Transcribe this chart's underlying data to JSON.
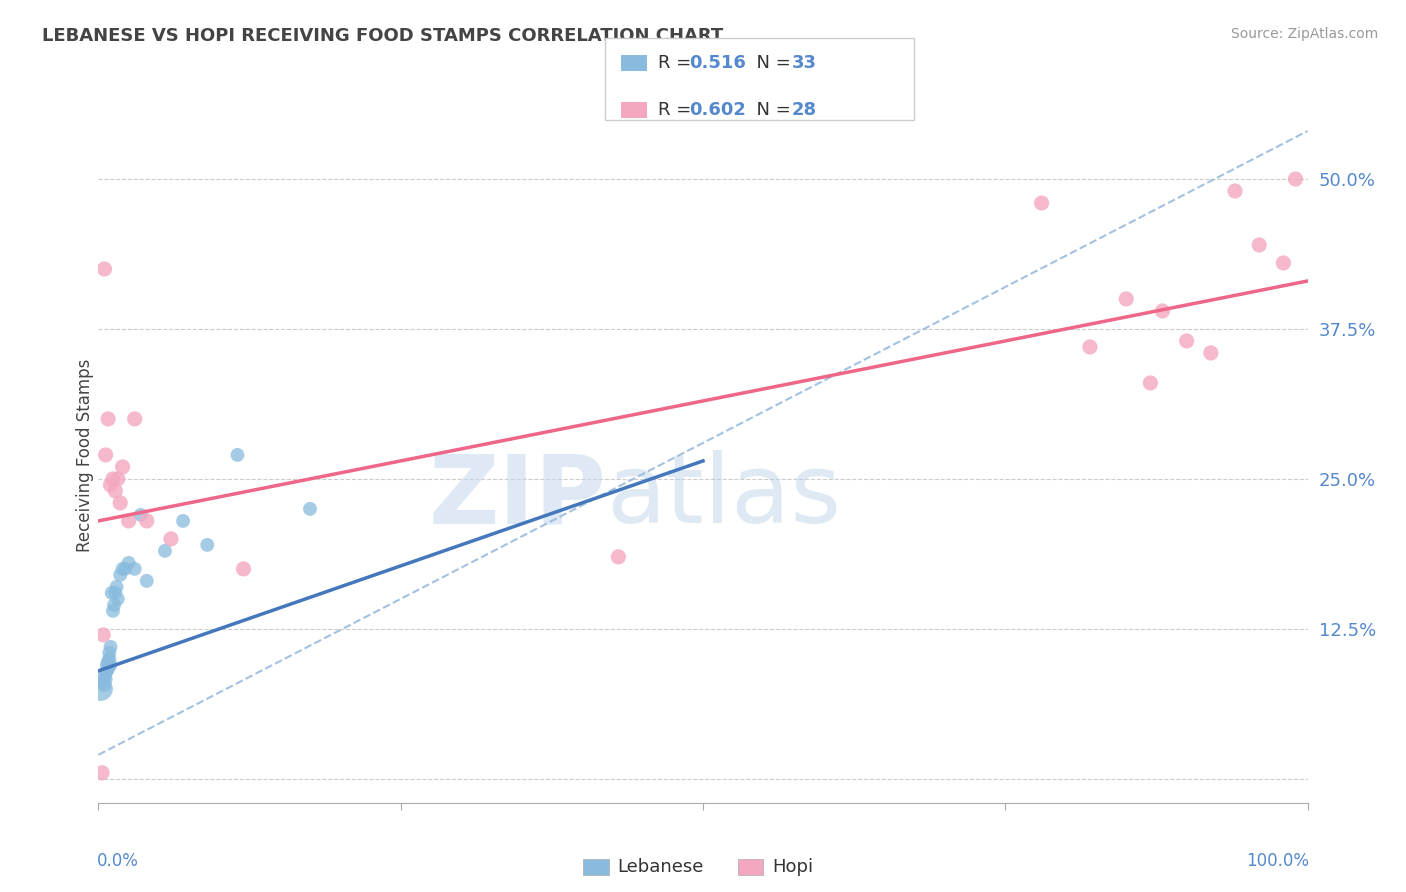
{
  "title": "LEBANESE VS HOPI RECEIVING FOOD STAMPS CORRELATION CHART",
  "source": "Source: ZipAtlas.com",
  "ylabel": "Receiving Food Stamps",
  "yticks": [
    0.0,
    0.125,
    0.25,
    0.375,
    0.5
  ],
  "ytick_labels": [
    "",
    "12.5%",
    "25.0%",
    "37.5%",
    "50.0%"
  ],
  "xlim": [
    0.0,
    1.0
  ],
  "ylim": [
    -0.02,
    0.56
  ],
  "legend_r_blue": "0.516",
  "legend_n_blue": "33",
  "legend_r_pink": "0.602",
  "legend_n_pink": "28",
  "blue_color": "#88bbdd",
  "pink_color": "#f4a8c0",
  "blue_line_color": "#4477bb",
  "pink_line_color": "#ee6688",
  "ref_line_color": "#99bbdd",
  "watermark_zip": "ZIP",
  "watermark_atlas": "atlas",
  "blue_scatter_x": [
    0.002,
    0.003,
    0.004,
    0.005,
    0.005,
    0.006,
    0.006,
    0.007,
    0.007,
    0.008,
    0.008,
    0.009,
    0.009,
    0.01,
    0.01,
    0.011,
    0.012,
    0.013,
    0.014,
    0.015,
    0.016,
    0.018,
    0.02,
    0.022,
    0.025,
    0.03,
    0.035,
    0.04,
    0.055,
    0.07,
    0.09,
    0.115,
    0.175
  ],
  "blue_scatter_y": [
    0.075,
    0.08,
    0.082,
    0.078,
    0.085,
    0.083,
    0.088,
    0.09,
    0.095,
    0.092,
    0.098,
    0.1,
    0.105,
    0.095,
    0.11,
    0.155,
    0.14,
    0.145,
    0.155,
    0.16,
    0.15,
    0.17,
    0.175,
    0.175,
    0.18,
    0.175,
    0.22,
    0.165,
    0.19,
    0.215,
    0.195,
    0.27,
    0.225
  ],
  "pink_scatter_x": [
    0.003,
    0.004,
    0.005,
    0.006,
    0.008,
    0.01,
    0.012,
    0.014,
    0.016,
    0.018,
    0.02,
    0.025,
    0.03,
    0.04,
    0.06,
    0.12,
    0.43,
    0.78,
    0.82,
    0.85,
    0.87,
    0.88,
    0.9,
    0.92,
    0.94,
    0.96,
    0.98,
    0.99
  ],
  "pink_scatter_y": [
    0.005,
    0.12,
    0.425,
    0.27,
    0.3,
    0.245,
    0.25,
    0.24,
    0.25,
    0.23,
    0.26,
    0.215,
    0.3,
    0.215,
    0.2,
    0.175,
    0.185,
    0.48,
    0.36,
    0.4,
    0.33,
    0.39,
    0.365,
    0.355,
    0.49,
    0.445,
    0.43,
    0.5
  ],
  "blue_line_x": [
    0.0,
    0.5
  ],
  "blue_line_y": [
    0.09,
    0.265
  ],
  "pink_line_x": [
    0.0,
    1.0
  ],
  "pink_line_y": [
    0.215,
    0.415
  ],
  "ref_line_x": [
    0.0,
    1.0
  ],
  "ref_line_y": [
    0.02,
    0.54
  ]
}
